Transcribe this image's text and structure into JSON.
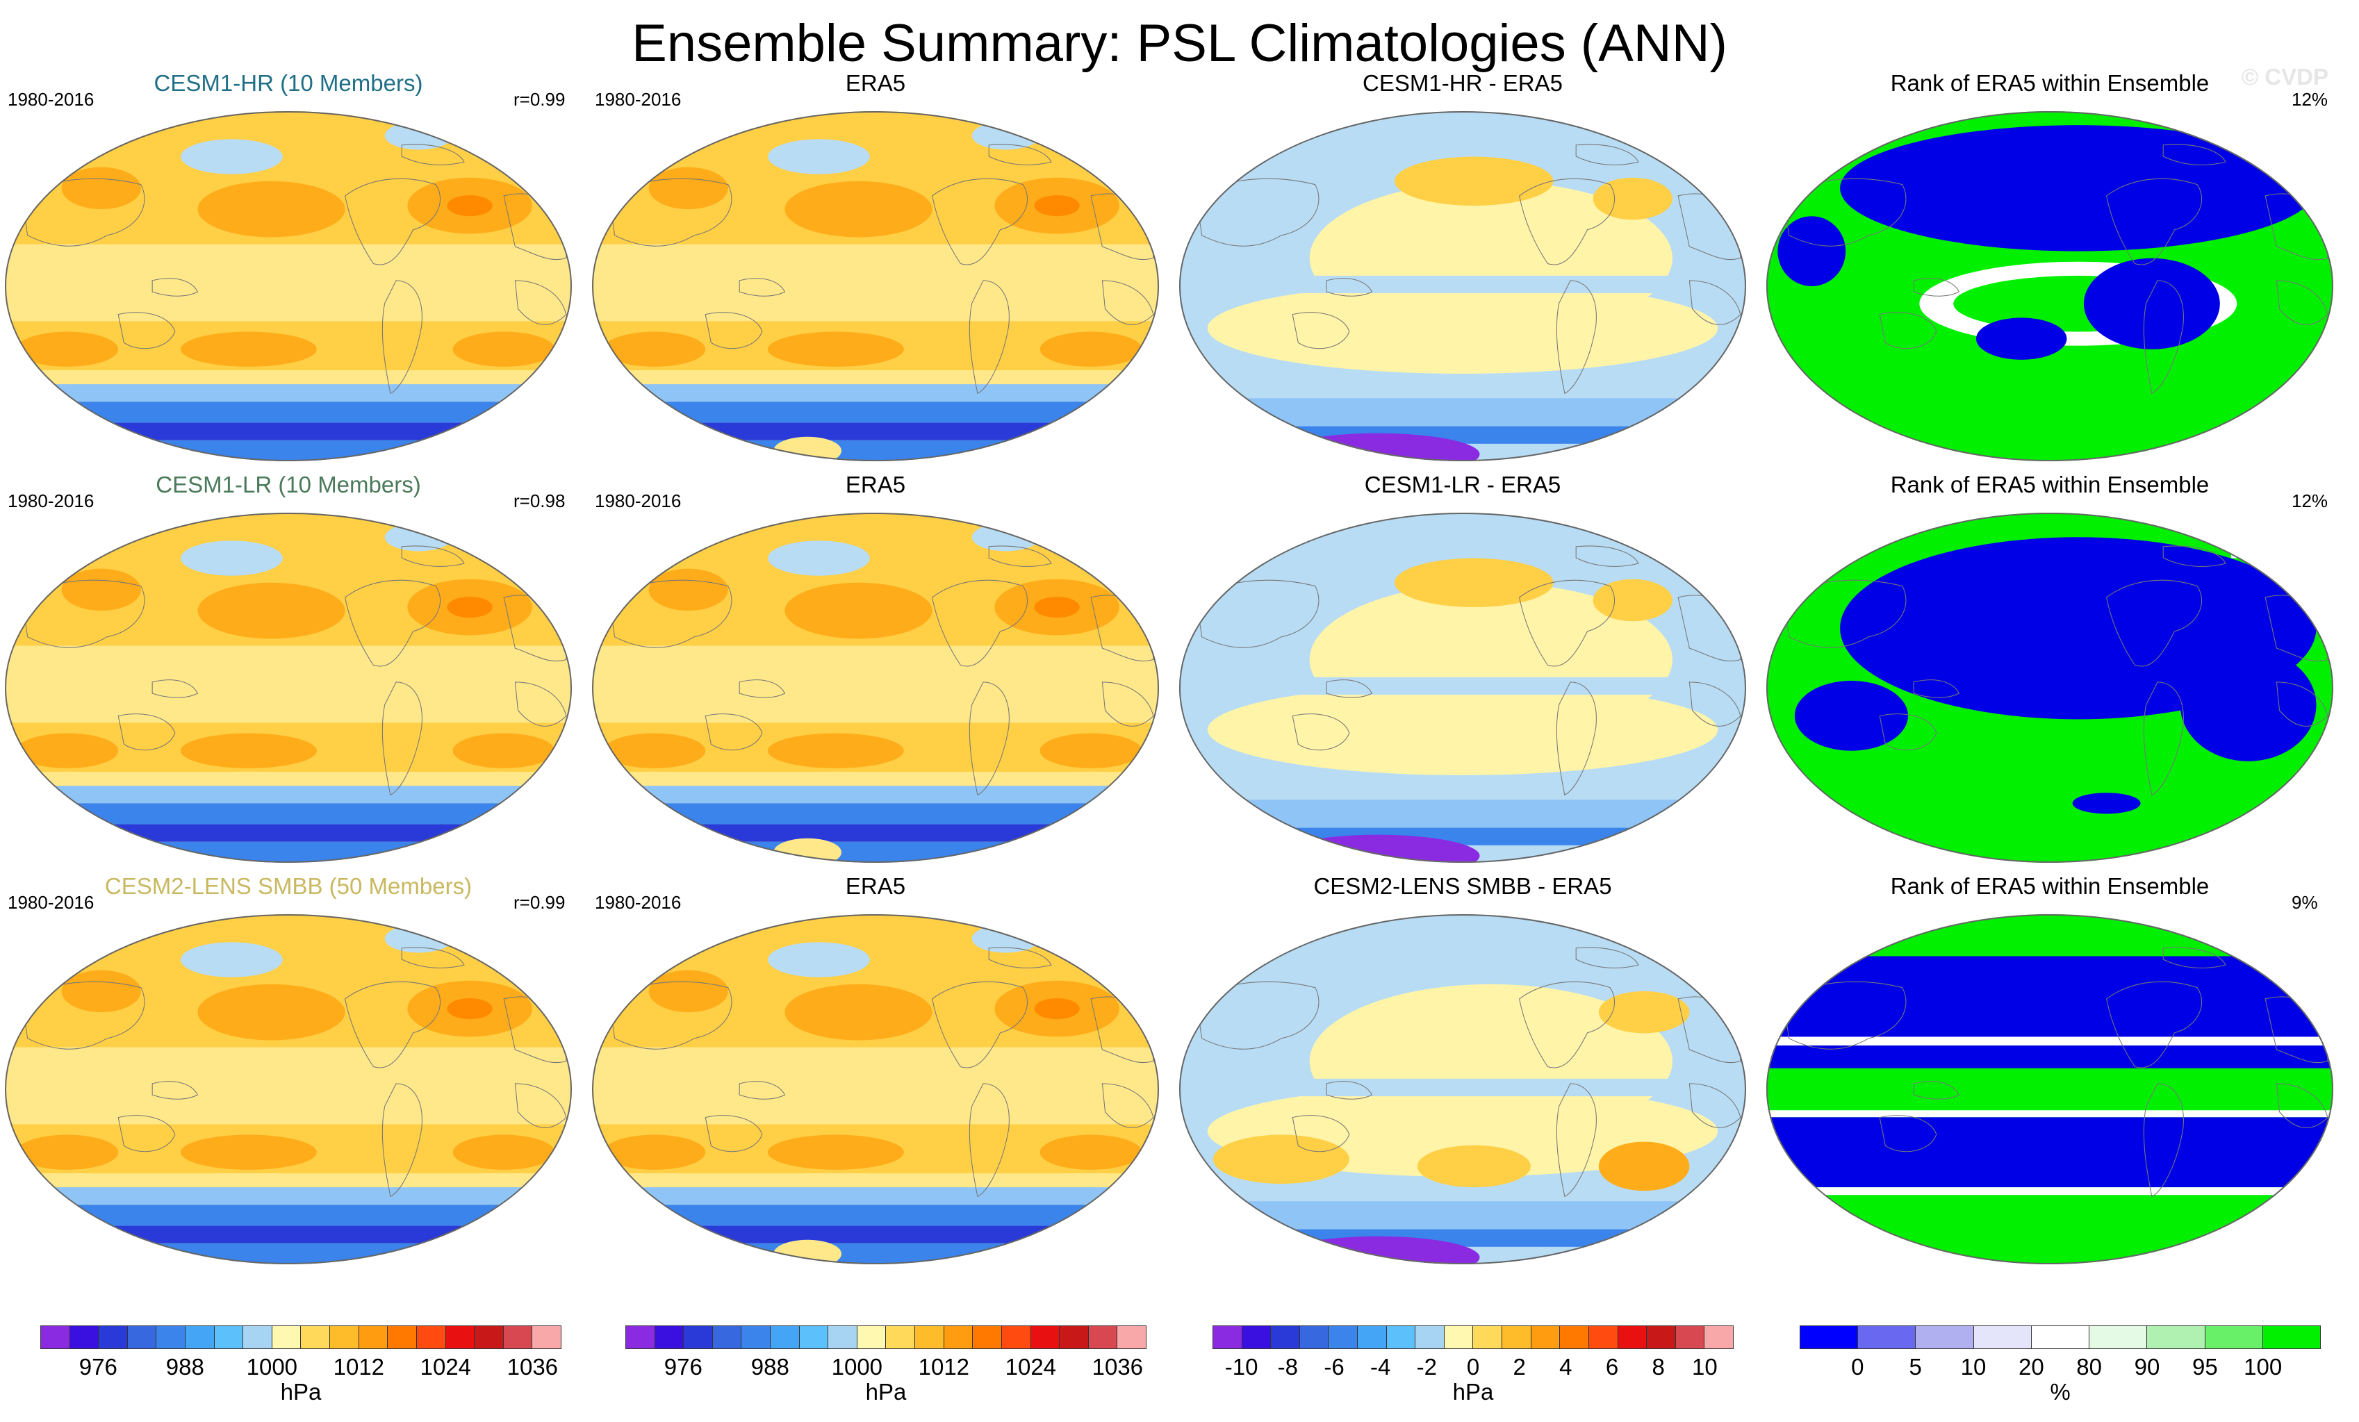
{
  "title": "Ensemble Summary: PSL Climatologies (ANN)",
  "watermark": "© CVDP",
  "rows": [
    {
      "model": "CESM1-HR (10 Members)",
      "model_color": "#1f6f86",
      "period": "1980-2016",
      "corr": "r=0.99",
      "obs_title": "ERA5",
      "obs_period": "1980-2016",
      "diff_title": "CESM1-HR - ERA5",
      "rank_title": "Rank of ERA5 within Ensemble",
      "rank_pct": "12%"
    },
    {
      "model": "CESM1-LR (10 Members)",
      "model_color": "#4a7a5a",
      "period": "1980-2016",
      "corr": "r=0.98",
      "obs_title": "ERA5",
      "obs_period": "1980-2016",
      "diff_title": "CESM1-LR - ERA5",
      "rank_title": "Rank of ERA5 within Ensemble",
      "rank_pct": "12%"
    },
    {
      "model": "CESM2-LENS SMBB (50 Members)",
      "model_color": "#c8b860",
      "period": "1980-2016",
      "corr": "r=0.99",
      "obs_title": "ERA5",
      "obs_period": "1980-2016",
      "diff_title": "CESM2-LENS SMBB - ERA5",
      "rank_title": "Rank of ERA5 within Ensemble",
      "rank_pct": "9%"
    }
  ],
  "colorbars": {
    "psl": {
      "unit": "hPa",
      "ticks": [
        "976",
        "988",
        "1000",
        "1012",
        "1024",
        "1036"
      ],
      "colors": [
        "#8a2be2",
        "#3a10e0",
        "#2a3ad8",
        "#3868e0",
        "#3a84ec",
        "#44a4f6",
        "#5cc0fa",
        "#a8d4f4",
        "#fff8b0",
        "#ffda5a",
        "#ffbc2a",
        "#ff9c10",
        "#ff7800",
        "#ff4a10",
        "#e81010",
        "#c81818",
        "#d84850",
        "#f8a8a8"
      ]
    },
    "diff": {
      "unit": "hPa",
      "ticks": [
        "-10",
        "-8",
        "-6",
        "-4",
        "-2",
        "0",
        "2",
        "4",
        "6",
        "8",
        "10"
      ],
      "colors": [
        "#8a2be2",
        "#3a10e0",
        "#2a3ad8",
        "#3868e0",
        "#3a84ec",
        "#44a4f6",
        "#5cc0fa",
        "#a8d4f4",
        "#fff8b0",
        "#ffda5a",
        "#ffbc2a",
        "#ff9c10",
        "#ff7800",
        "#ff4a10",
        "#e81010",
        "#c81818",
        "#d84850",
        "#f8a8a8"
      ]
    },
    "rank": {
      "unit": "%",
      "ticks": [
        "0",
        "5",
        "10",
        "20",
        "80",
        "90",
        "95",
        "100"
      ],
      "colors": [
        "#0000ff",
        "#6868f0",
        "#b0b0f0",
        "#e4e4fa",
        "#ffffff",
        "#e4fae4",
        "#b0f0b0",
        "#68f068",
        "#00f000"
      ]
    },
    "colors": {
      "climo": {
        "ocean": "#ffe88a",
        "mid": "#ffcf45",
        "high": "#ffac1a",
        "peak": "#ff8a00",
        "low": "#b8dcf4",
        "antarctic1": "#3a84ec",
        "antarctic2": "#2a3ad8",
        "antarctic3": "#8fc4f6"
      },
      "diff": {
        "base": "#b8dcf4",
        "pos": "#fff4a8",
        "pos2": "#ffcf45",
        "pos3": "#ffac1a",
        "neg": "#8fc4f6",
        "neg2": "#3a84ec",
        "neg3": "#8a2be2"
      },
      "rank": {
        "blue": "#0000e6",
        "green": "#00f000",
        "white": "#ffffff"
      },
      "coast": "#777777"
    }
  }
}
